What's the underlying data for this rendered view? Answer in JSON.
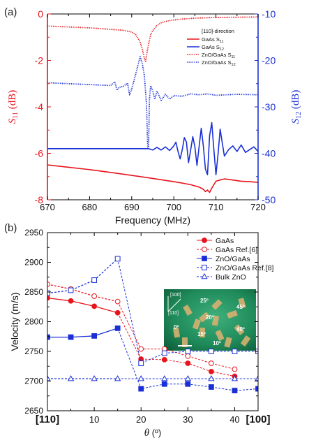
{
  "chart_data": [
    {
      "panel": "(a)",
      "type": "line",
      "xlabel": "Frequency (MHz)",
      "xlim": [
        670,
        720
      ],
      "xticks": [
        "670",
        "680",
        "690",
        "700",
        "710",
        "720"
      ],
      "ylabel_left": "S",
      "ylabel_left_sub": "11",
      "ylabel_left_unit": "(dB)",
      "ylabel_right": "S",
      "ylabel_right_sub": "12",
      "ylabel_right_unit": "(dB)",
      "ylim_left": [
        -8,
        0
      ],
      "yticks_left": [
        "-8",
        "-6",
        "-4",
        "-2",
        "0"
      ],
      "ylim_right": [
        -50,
        -10
      ],
      "yticks_right": [
        "-50",
        "-40",
        "-30",
        "-20",
        "-10"
      ],
      "left_axis_color": "#e8141c",
      "right_axis_color": "#1a2fd6",
      "legend_title": "[110]-direction",
      "legend_position": "top-right",
      "series": [
        {
          "name": "GaAs S",
          "name_sub": "11",
          "axis": "left",
          "color": "#e8141c",
          "style": "solid",
          "x": [
            670,
            675,
            680,
            685,
            690,
            695,
            700,
            702,
            704,
            705,
            706,
            707,
            707.5,
            708,
            708.5,
            709,
            709.5,
            710,
            711,
            712,
            714,
            716,
            718,
            720
          ],
          "y": [
            -6.5,
            -6.6,
            -6.7,
            -6.82,
            -6.95,
            -7.08,
            -7.22,
            -7.28,
            -7.35,
            -7.4,
            -7.45,
            -7.55,
            -7.65,
            -7.58,
            -7.68,
            -7.5,
            -7.35,
            -7.2,
            -7.15,
            -7.1,
            -7.15,
            -7.2,
            -7.22,
            -7.25
          ]
        },
        {
          "name": "GaAs S",
          "name_sub": "12",
          "axis": "right",
          "color": "#1a2fd6",
          "style": "solid",
          "x": [
            670,
            675,
            680,
            685,
            690,
            692,
            694,
            695,
            696,
            697,
            698,
            699,
            700,
            700.5,
            701,
            701.5,
            702,
            702.5,
            703,
            703.5,
            704,
            704.5,
            705,
            705.5,
            706,
            706.5,
            707,
            707.5,
            708,
            708.5,
            709,
            709.5,
            710,
            710.5,
            711,
            711.5,
            712,
            713,
            714,
            715,
            716,
            717,
            718,
            719,
            720
          ],
          "y": [
            -39,
            -39,
            -39,
            -39,
            -39,
            -39,
            -39,
            -39.3,
            -38.7,
            -39.3,
            -38.6,
            -39.4,
            -38.4,
            -37.6,
            -39.6,
            -41.2,
            -39.2,
            -36.6,
            -37.6,
            -42,
            -39.2,
            -36.4,
            -38.6,
            -42.6,
            -38.6,
            -34.6,
            -38.4,
            -43.4,
            -44.6,
            -36.2,
            -33.4,
            -39.2,
            -44.6,
            -40.2,
            -34.8,
            -37.8,
            -40.6,
            -39.2,
            -38.4,
            -39.6,
            -38.2,
            -39.8,
            -39.2,
            -38.6,
            -39.6
          ]
        },
        {
          "name": "ZnO/GaAs S",
          "name_sub": "11",
          "axis": "left",
          "color": "#e8141c",
          "style": "dotted",
          "x": [
            670,
            680,
            688,
            690,
            691,
            692,
            692.5,
            693,
            693.3,
            693.6,
            694,
            694.5,
            695,
            696,
            697,
            699,
            702,
            705,
            710,
            715,
            720
          ],
          "y": [
            -0.52,
            -0.6,
            -0.7,
            -0.78,
            -0.9,
            -1.2,
            -1.5,
            -1.9,
            -2.05,
            -1.7,
            -1.3,
            -0.9,
            -0.72,
            -0.5,
            -0.38,
            -0.28,
            -0.22,
            -0.18,
            -0.15,
            -0.14,
            -0.13
          ]
        },
        {
          "name": "ZnO/GaAs S",
          "name_sub": "12",
          "axis": "right",
          "color": "#1a2fd6",
          "style": "dotted",
          "x": [
            670,
            675,
            680,
            685,
            686,
            686.5,
            687,
            688,
            689,
            689.5,
            690,
            691,
            692,
            692.5,
            693,
            693.5,
            693.8,
            694,
            694.2,
            694.5,
            695,
            695.5,
            696,
            697,
            698,
            699,
            700,
            702,
            704,
            706,
            708,
            710,
            715,
            720
          ],
          "y": [
            -24.8,
            -25,
            -25.2,
            -25.4,
            -24.6,
            -26.4,
            -25.8,
            -25.6,
            -24.9,
            -27.4,
            -26.2,
            -22.8,
            -19.2,
            -20.6,
            -23.2,
            -29.2,
            -38.6,
            -38.7,
            -28.5,
            -25.4,
            -26.6,
            -28.4,
            -26.6,
            -28.6,
            -27.3,
            -28.3,
            -27.6,
            -27.7,
            -27.2,
            -27.4,
            -27.2,
            -27.5,
            -27.3,
            -27.4
          ]
        }
      ]
    },
    {
      "panel": "(b)",
      "type": "scatter",
      "xlabel": "θ",
      "xlabel_unit": "(º)",
      "ylabel": "Velocity (m/s)",
      "xlim": [
        0,
        45
      ],
      "ylim": [
        2650,
        2950
      ],
      "xticks": [
        "[110]",
        "10",
        "20",
        "30",
        "40",
        "[100]"
      ],
      "yticks": [
        "2650",
        "2700",
        "2750",
        "2800",
        "2850",
        "2900",
        "2950"
      ],
      "legend_position": "top-right",
      "series": [
        {
          "name": "GaAs",
          "color": "#e8141c",
          "marker": "circle-filled",
          "x": [
            0,
            5,
            10,
            15,
            20,
            25,
            30,
            35,
            40
          ],
          "y": [
            2840,
            2835,
            2826,
            2815,
            2737,
            2736,
            2730,
            2716,
            2708
          ]
        },
        {
          "name": "GaAs Ref.[6]",
          "color": "#e8141c",
          "marker": "circle-open",
          "x": [
            0,
            5,
            10,
            15,
            20,
            25,
            30,
            35,
            40
          ],
          "y": [
            2863,
            2855,
            2843,
            2834,
            2754,
            2754,
            2742,
            2730,
            2720
          ]
        },
        {
          "name": "ZnO/GaAs",
          "color": "#1a2fd6",
          "marker": "square-filled",
          "x": [
            0,
            5,
            10,
            15,
            20,
            25,
            30,
            35,
            40,
            45
          ],
          "y": [
            2774,
            2774,
            2776,
            2789,
            2687,
            2695,
            2695,
            2690,
            2684,
            2687
          ]
        },
        {
          "name": "ZnO/GaAs Ref.[8]",
          "color": "#1a2fd6",
          "marker": "square-open",
          "x": [
            0,
            5,
            10,
            15,
            20,
            25,
            30,
            35,
            40,
            45
          ],
          "y": [
            2848,
            2853,
            2870,
            2906,
            2730,
            2747,
            2750,
            2750,
            2750,
            2750
          ]
        },
        {
          "name": "Bulk ZnO",
          "color": "#1a2fd6",
          "marker": "triangle-open",
          "x": [
            0,
            5,
            10,
            15,
            20,
            25,
            30,
            35,
            40,
            45
          ],
          "y": [
            2704,
            2704,
            2704,
            2704,
            2704,
            2704,
            2704,
            2704,
            2704,
            2704
          ]
        }
      ],
      "inset": {
        "label_100": "[100]",
        "label_110": "[110]",
        "angle_labels": [
          "25º",
          "20º",
          "0º",
          "15º",
          "10º",
          "45º",
          "40º"
        ]
      }
    }
  ]
}
